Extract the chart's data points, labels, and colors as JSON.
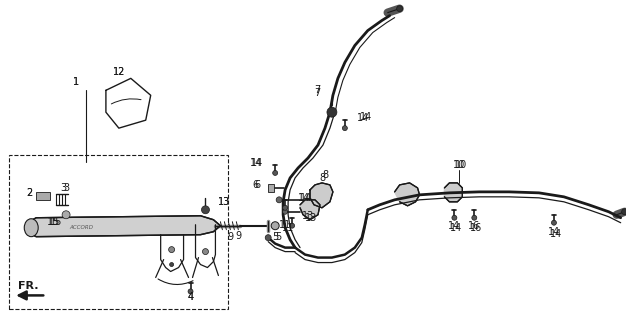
{
  "bg_color": "#ffffff",
  "line_color": "#1a1a1a",
  "fig_w": 6.27,
  "fig_h": 3.2,
  "dpi": 100,
  "fr_label": "FR."
}
